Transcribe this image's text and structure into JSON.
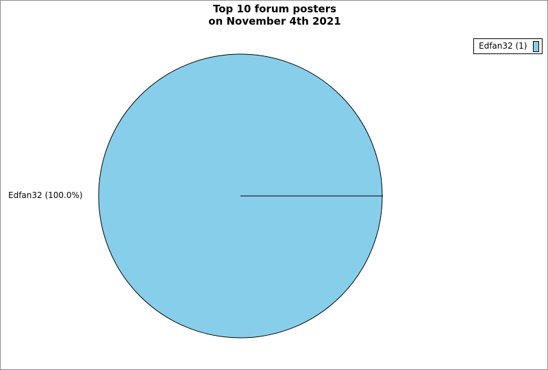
{
  "chart_data": {
    "type": "pie",
    "title_line1": "Top 10 forum posters",
    "title_line2": "on November 4th 2021",
    "slices": [
      {
        "name": "Edfan32",
        "value": 1,
        "percent": 100.0,
        "color": "#87ceeb"
      }
    ],
    "legend": {
      "placement": "top-right",
      "entries": [
        "Edfan32 (1)"
      ]
    },
    "slice_labels": [
      "Edfan32 (100.0%)"
    ]
  }
}
